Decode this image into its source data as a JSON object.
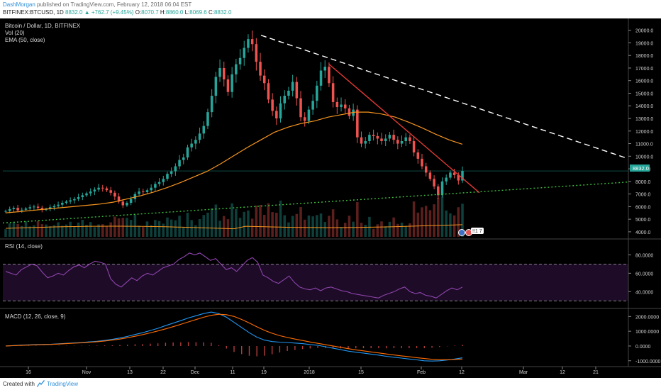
{
  "header": {
    "author": "DashMorgan",
    "published_text": " published on TradingView.com, February 12, 2018 06:04 EST",
    "symbol": "BITFINEX:BTCUSD, 1D",
    "close_value": "8832.0",
    "change": "▲ +762.7 (+9.45%)",
    "o_label": "O:",
    "o_value": "8070.7",
    "h_label": "H:",
    "h_value": "8860.0",
    "l_label": "L:",
    "l_value": "8069.6",
    "c_label": "C:",
    "c_value": "8832.0"
  },
  "legend": {
    "title": "Bitcoin / Dollar, 1D, BITFINEX",
    "vol": "Vol (20)",
    "ema": "EMA (50, close)",
    "rsi": "RSI (14, close)",
    "macd": "MACD (12, 26, close, 9)"
  },
  "price_tag": "8832.0",
  "marker_text": "!!1 7",
  "footer": {
    "created_with": "Created with",
    "brand": "TradingView"
  },
  "colors": {
    "background": "#000000",
    "up": "#26a69a",
    "down": "#ef5350",
    "ema": "#f7941d",
    "red_trendline": "#e53935",
    "white_dashed": "#ffffff",
    "green_dotted": "#3fbf3f",
    "rsi_line": "#8e44ad",
    "macd_line": "#2196f3",
    "signal_line": "#ff6d00",
    "axis_text": "#d0d0d0"
  },
  "chart_data": [
    {
      "type": "candlestick",
      "title": "Bitcoin / Dollar, 1D, BITFINEX",
      "ylim": [
        3600,
        20600
      ],
      "y_ticks": [
        "4000.0",
        "5000.0",
        "6000.0",
        "7000.0",
        "8000.0",
        "9000.0",
        "10000.0",
        "11000.0",
        "12000.0",
        "13000.0",
        "14000.0",
        "15000.0",
        "16000.0",
        "17000.0",
        "18000.0",
        "19000.0",
        "20000.0"
      ],
      "x_ticks": [
        "16",
        "Nov",
        "13",
        "22",
        "Dec",
        "11",
        "19",
        "2018",
        "15",
        "Feb",
        "12",
        "Mar",
        "12",
        "21"
      ],
      "last_close": 8832.0,
      "close_series": [
        5650,
        5800,
        5900,
        5700,
        5750,
        5850,
        5950,
        6000,
        5900,
        5750,
        5800,
        5950,
        6050,
        6150,
        6300,
        6400,
        6500,
        6600,
        6750,
        6900,
        7050,
        7200,
        7350,
        7500,
        7450,
        7300,
        7100,
        6800,
        6400,
        6100,
        6300,
        6600,
        7000,
        7200,
        7150,
        7300,
        7500,
        7800,
        7950,
        8200,
        8600,
        8800,
        9200,
        9700,
        9900,
        10700,
        11000,
        11300,
        11800,
        12400,
        13500,
        14800,
        16300,
        17000,
        16100,
        15100,
        16500,
        17300,
        17800,
        18600,
        19300,
        18900,
        17500,
        16400,
        15800,
        14500,
        13600,
        13000,
        14200,
        14800,
        15200,
        15900,
        14600,
        13100,
        12800,
        13700,
        14400,
        15600,
        16800,
        17100,
        15800,
        14300,
        13900,
        14100,
        13800,
        13200,
        13700,
        11500,
        11000,
        11200,
        11700,
        11600,
        11400,
        11200,
        11400,
        11700,
        11300,
        11000,
        11200,
        11500,
        11200,
        10300,
        9800,
        9200,
        8700,
        8200,
        7600,
        6900,
        8000,
        8300,
        8700,
        8500,
        8070,
        8832
      ],
      "ema_50": [
        5500,
        5600,
        5700,
        5800,
        5900,
        6000,
        6100,
        6200,
        6350,
        6600,
        6850,
        7150,
        7500,
        7900,
        8350,
        8800,
        9400,
        10050,
        10700,
        11300,
        11900,
        12300,
        12600,
        12800,
        13100,
        13300,
        13500,
        13500,
        13350,
        13100,
        12700,
        12250,
        11750,
        11300,
        10950
      ],
      "volume_ylim": [
        0,
        100
      ],
      "trendlines": [
        {
          "name": "",
          "from": [
            "Dec 17",
            19600
          ],
          "to": [
            "Mar 31",
            9800
          ],
          "style": "dashed",
          "color": "#ffffff"
        },
        {
          "name": "",
          "from": [
            "Jan 7",
            17300
          ],
          "to": [
            "Feb 16",
            7100
          ],
          "style": "solid",
          "color": "#e53935"
        },
        {
          "name": "",
          "from": [
            "Oct 3",
            4700
          ],
          "to": [
            "Mar 31",
            7950
          ],
          "style": "dotted",
          "color": "#3fbf3f"
        }
      ]
    },
    {
      "type": "line",
      "title": "RSI (14, close)",
      "ylim": [
        24,
        95
      ],
      "y_ticks": [
        "40.0000",
        "60.0000",
        "80.0000"
      ],
      "bands": [
        30,
        70
      ],
      "series": [
        {
          "name": "",
          "values": [
            62,
            60,
            58,
            64,
            67,
            70,
            68,
            61,
            55,
            57,
            60,
            58,
            63,
            67,
            69,
            66,
            70,
            73,
            72,
            70,
            54,
            48,
            45,
            50,
            55,
            52,
            57,
            60,
            58,
            62,
            66,
            68,
            70,
            75,
            78,
            82,
            80,
            82,
            78,
            74,
            76,
            70,
            64,
            66,
            62,
            68,
            74,
            77,
            72,
            58,
            55,
            51,
            49,
            53,
            57,
            50,
            45,
            43,
            42,
            44,
            41,
            44,
            45,
            43,
            41,
            40,
            38,
            37,
            36,
            35,
            34,
            33,
            36,
            38,
            40,
            43,
            45,
            40,
            38,
            39,
            36,
            35,
            33,
            37,
            41,
            44,
            42,
            45
          ]
        }
      ]
    },
    {
      "type": "line",
      "title": "MACD (12, 26, close, 9)",
      "ylim": [
        -1300,
        2400
      ],
      "y_ticks": [
        "-1000.0000",
        "0.0000",
        "1000.0000",
        "2000.0000"
      ],
      "series": [
        {
          "name": "",
          "values": [
            0,
            30,
            60,
            80,
            100,
            110,
            120,
            150,
            180,
            210,
            240,
            280,
            320,
            380,
            450,
            540,
            650,
            780,
            900,
            1050,
            1200,
            1380,
            1550,
            1720,
            1900,
            2050,
            2200,
            2300,
            2200,
            1950,
            1600,
            1250,
            900,
            600,
            400,
            300,
            260,
            240,
            200,
            160,
            100,
            50,
            -50,
            -150,
            -250,
            -350,
            -420,
            -480,
            -550,
            -620,
            -700,
            -760,
            -820,
            -880,
            -940,
            -1000,
            -1020,
            -1000,
            -950,
            -880,
            -800
          ]
        },
        {
          "name": "",
          "values": [
            0,
            20,
            40,
            60,
            80,
            100,
            110,
            130,
            160,
            190,
            220,
            250,
            290,
            340,
            400,
            470,
            560,
            660,
            770,
            890,
            1020,
            1160,
            1310,
            1470,
            1630,
            1790,
            1950,
            2080,
            2150,
            2120,
            2000,
            1800,
            1560,
            1300,
            1060,
            860,
            700,
            580,
            470,
            370,
            270,
            180,
            90,
            0,
            -90,
            -180,
            -260,
            -330,
            -400,
            -470,
            -540,
            -610,
            -670,
            -730,
            -790,
            -850,
            -900,
            -930,
            -930,
            -910,
            -880
          ]
        }
      ],
      "histogram": [
        0,
        10,
        20,
        20,
        20,
        10,
        10,
        20,
        20,
        20,
        20,
        30,
        30,
        40,
        50,
        70,
        90,
        120,
        130,
        160,
        180,
        220,
        240,
        250,
        270,
        260,
        250,
        220,
        50,
        -170,
        -400,
        -550,
        -660,
        -700,
        -660,
        -560,
        -440,
        -340,
        -270,
        -210,
        -170,
        -130,
        -140,
        -150,
        -160,
        -170,
        -160,
        -150,
        -150,
        -150,
        -160,
        -150,
        -150,
        -150,
        -150,
        -150,
        -120,
        -70,
        -20,
        30,
        80
      ]
    }
  ]
}
